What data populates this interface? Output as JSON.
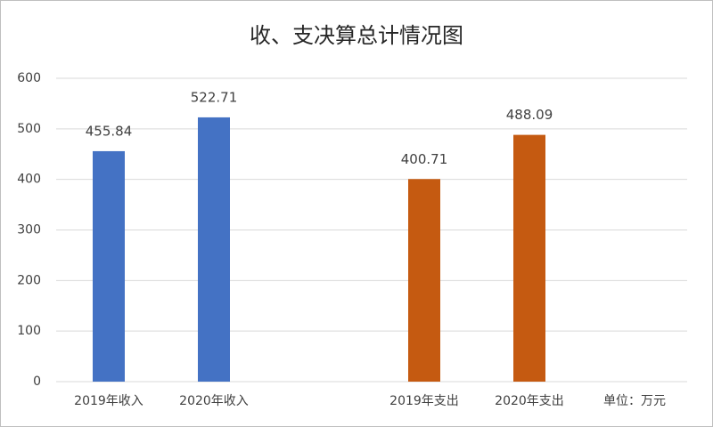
{
  "chart_data": {
    "type": "bar",
    "title": "收、支决算总计情况图",
    "categories": [
      "2019年收入",
      "2020年收入",
      null,
      "2019年支出",
      "2020年支出"
    ],
    "values": [
      455.84,
      522.71,
      null,
      400.71,
      488.09
    ],
    "colors": [
      "#4472c4",
      "#4472c4",
      null,
      "#c55a11",
      "#c55a11"
    ],
    "unit_note": "单位：万元",
    "ylim": [
      0,
      600
    ],
    "yticks": [
      0,
      100,
      200,
      300,
      400,
      500,
      600
    ],
    "grid": true
  }
}
